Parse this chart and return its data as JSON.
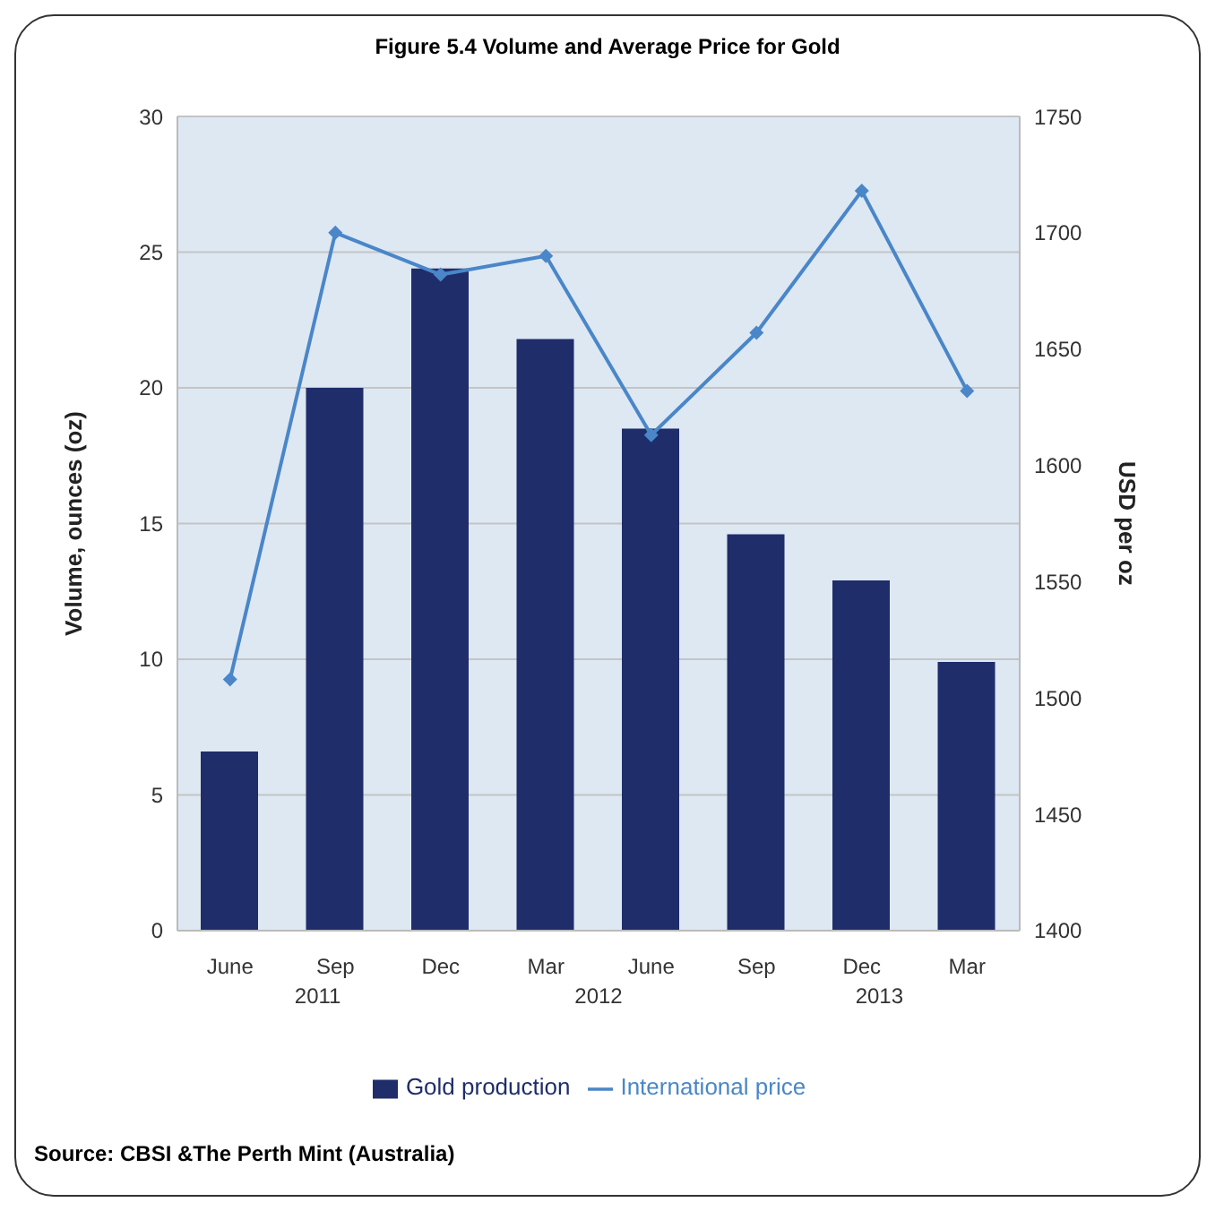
{
  "chart_data": {
    "type": "bar",
    "title": "Figure 5.4 Volume and Average Price for Gold",
    "categories": [
      "June",
      "Sep",
      "Dec",
      "Mar",
      "June",
      "Sep",
      "Dec",
      "Mar"
    ],
    "series": [
      {
        "name": "Gold production",
        "color": "#1f2d6b",
        "values": [
          6.6,
          20,
          24.4,
          21.8,
          18.5,
          14.6,
          12.9,
          9.9
        ]
      },
      {
        "name": "International price",
        "type": "line",
        "axis": "y2",
        "color": "#4a86c8",
        "values": [
          1508,
          1700,
          1682,
          1690,
          1613,
          1657,
          1718,
          1632
        ]
      }
    ],
    "ylabel": "Volume, ounces (oz)",
    "y2label": "USD per oz",
    "ylim": [
      0,
      30
    ],
    "yticks": [
      0,
      5,
      10,
      15,
      20,
      25,
      30
    ],
    "y2lim": [
      1400,
      1750
    ],
    "y2ticks": [
      1400,
      1450,
      1500,
      1550,
      1600,
      1650,
      1700,
      1750
    ],
    "grid": "y",
    "legend": "bottom",
    "marker": "diamond",
    "line_style": "solid",
    "annotations": [
      "2011",
      "2012",
      "2013",
      "Source: CBSI &The Perth Mint (Australia)"
    ]
  }
}
